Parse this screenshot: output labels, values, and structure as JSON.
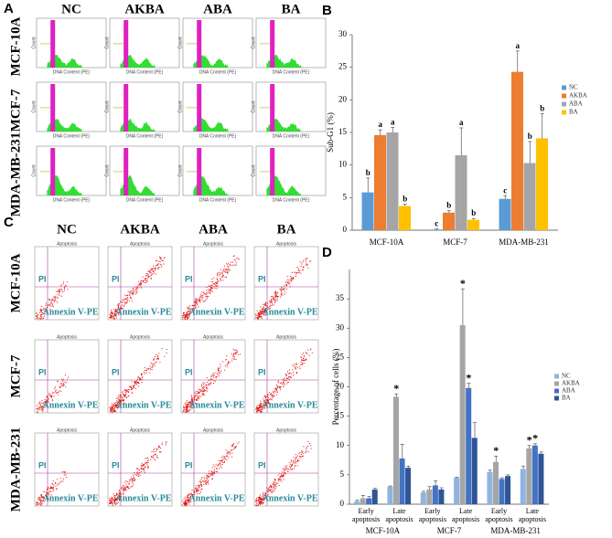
{
  "panel_a": {
    "label": "A",
    "columns": [
      "NC",
      "AKBA",
      "ABA",
      "BA"
    ],
    "rows": [
      "MCF-10A",
      "MCF-7",
      "MDA-MB-231"
    ],
    "y_label": "Count",
    "x_label": "DNA Content (PE)"
  },
  "panel_c": {
    "label": "C",
    "columns": [
      "NC",
      "AKBA",
      "ABA",
      "BA"
    ],
    "rows": [
      "MCF-10A",
      "MCF-7",
      "MDA-MB-231"
    ],
    "y_label": "PI",
    "x_label": "Annexin V-PE",
    "gate_label": "Apoptosis"
  },
  "chart_data": [
    {
      "panel_label": "B",
      "type": "bar",
      "y_label": "Sub-G1 (%)",
      "categories": [
        "MCF-10A",
        "MCF-7",
        "MDA-MB-231"
      ],
      "ylim": [
        0,
        30
      ],
      "yticks": [
        0,
        5,
        10,
        15,
        20,
        25,
        30
      ],
      "legend": "right",
      "series": [
        {
          "name": "NC",
          "color": "#5b9bd5",
          "values": [
            5.8,
            0.1,
            4.8
          ],
          "errors": [
            2.2,
            0.1,
            0.5
          ],
          "labels": [
            "b",
            "c",
            "c"
          ]
        },
        {
          "name": "AKBA",
          "color": "#ed7d31",
          "values": [
            14.6,
            2.7,
            24.3
          ],
          "errors": [
            0.8,
            0.3,
            3.2
          ],
          "labels": [
            "a",
            "b",
            "a"
          ]
        },
        {
          "name": "ABA",
          "color": "#a5a5a5",
          "values": [
            15.0,
            11.5,
            10.3
          ],
          "errors": [
            0.8,
            4.2,
            3.3
          ],
          "labels": [
            "a",
            "a",
            "b"
          ]
        },
        {
          "name": "BA",
          "color": "#ffc000",
          "values": [
            3.7,
            1.6,
            14.1
          ],
          "errors": [
            0.3,
            0.2,
            3.8
          ],
          "labels": [
            "b",
            "b",
            "b"
          ]
        }
      ]
    },
    {
      "panel_label": "D",
      "type": "bar",
      "y_label": "Percentage of cells (%)",
      "categories": [
        "Early apoptosis",
        "Late apoptosis",
        "Early apoptosis",
        "Late apoptosis",
        "Early apoptosis",
        "Late apoptosis"
      ],
      "groups": [
        "MCF-10A",
        "MCF-7",
        "MDA-MB-231"
      ],
      "ylim": [
        0,
        40
      ],
      "yticks": [
        0,
        5,
        10,
        15,
        20,
        25,
        30,
        35
      ],
      "legend": "right",
      "series": [
        {
          "name": "NC",
          "color": "#8fb4e0",
          "values": [
            0.5,
            3.0,
            2.0,
            4.5,
            5.5,
            6.0
          ],
          "errors": [
            0.2,
            0.1,
            0.2,
            0.1,
            0.3,
            0.5
          ],
          "labels": [
            null,
            null,
            null,
            null,
            null,
            null
          ]
        },
        {
          "name": "AKBA",
          "color": "#a5a5a5",
          "values": [
            1.0,
            18.3,
            2.5,
            30.5,
            7.2,
            9.5
          ],
          "errors": [
            0.5,
            0.5,
            0.5,
            6.2,
            1.0,
            0.5
          ],
          "labels": [
            null,
            "*",
            null,
            "*",
            "*",
            "*"
          ]
        },
        {
          "name": "ABA",
          "color": "#4472c4",
          "values": [
            1.0,
            7.8,
            3.2,
            19.8,
            4.3,
            10.0
          ],
          "errors": [
            0.3,
            2.4,
            0.8,
            0.8,
            0.2,
            0.3
          ],
          "labels": [
            null,
            null,
            null,
            "*",
            null,
            "*"
          ]
        },
        {
          "name": "BA",
          "color": "#2f5597",
          "values": [
            2.5,
            6.2,
            2.5,
            11.3,
            4.8,
            8.6
          ],
          "errors": [
            0.2,
            0.3,
            0.3,
            2.6,
            0.2,
            0.3
          ],
          "labels": [
            null,
            null,
            null,
            null,
            null,
            null
          ]
        }
      ]
    }
  ]
}
